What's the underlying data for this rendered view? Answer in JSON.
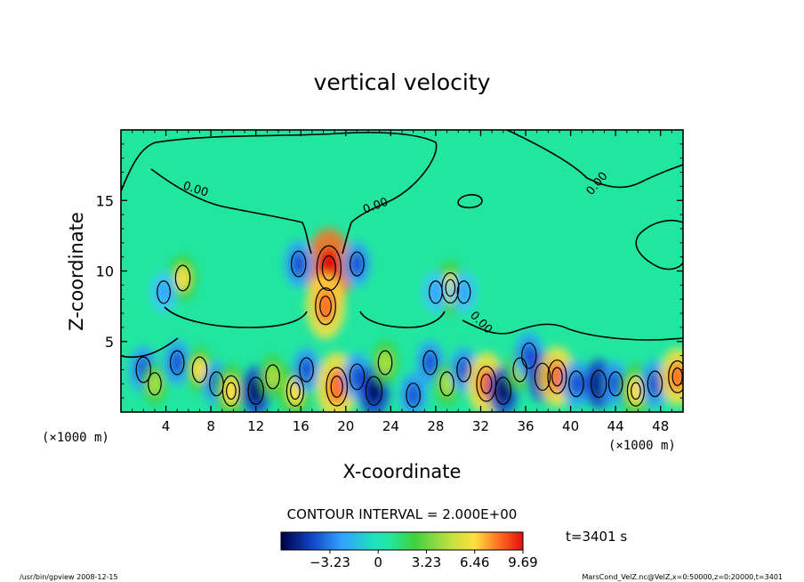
{
  "chart_data": {
    "type": "heatmap",
    "title": "vertical velocity",
    "xlabel": "X-coordinate",
    "ylabel": "Z-coordinate",
    "x_unit_left": "(×1000 m)",
    "x_unit_right": "(×1000 m)",
    "xlim": [
      0,
      50
    ],
    "ylim": [
      0,
      20
    ],
    "xticks": [
      "4",
      "8",
      "12",
      "16",
      "20",
      "24",
      "28",
      "32",
      "36",
      "40",
      "44",
      "48"
    ],
    "yticks": [
      "5",
      "10",
      "15"
    ],
    "contour_interval": "CONTOUR INTERVAL = 2.000E+00",
    "contour_labels": [
      "0.00",
      "0.00",
      "0.00",
      "0.00"
    ],
    "colorbar": {
      "ticks": [
        "−3.23",
        "0",
        "3.23",
        "6.46",
        "9.69"
      ],
      "min": -6.5,
      "max": 9.69
    },
    "time_label": "t=3401 s",
    "cells": [
      {
        "x": 18.5,
        "z": 10.2,
        "w": 9.5
      },
      {
        "x": 18.2,
        "z": 7.5,
        "w": 7.0
      },
      {
        "x": 15.8,
        "z": 10.5,
        "w": -3.5
      },
      {
        "x": 21.0,
        "z": 10.5,
        "w": -3.0
      },
      {
        "x": 5.5,
        "z": 9.5,
        "w": 3.5
      },
      {
        "x": 3.8,
        "z": 8.5,
        "w": -2.5
      },
      {
        "x": 29.3,
        "z": 8.8,
        "w": 5.0
      },
      {
        "x": 28.0,
        "z": 8.5,
        "w": -2.5
      },
      {
        "x": 30.5,
        "z": 8.5,
        "w": -2.5
      },
      {
        "x": 2.0,
        "z": 3.0,
        "w": -3.5
      },
      {
        "x": 3.0,
        "z": 2.0,
        "w": 2.5
      },
      {
        "x": 5.0,
        "z": 3.5,
        "w": -3.0
      },
      {
        "x": 7.0,
        "z": 3.0,
        "w": 3.5
      },
      {
        "x": 8.5,
        "z": 2.0,
        "w": -3.0
      },
      {
        "x": 9.8,
        "z": 1.5,
        "w": 5.0
      },
      {
        "x": 12.0,
        "z": 1.5,
        "w": -4.0
      },
      {
        "x": 13.5,
        "z": 2.5,
        "w": 3.0
      },
      {
        "x": 15.5,
        "z": 1.5,
        "w": 5.0
      },
      {
        "x": 16.5,
        "z": 3.0,
        "w": -3.0
      },
      {
        "x": 19.2,
        "z": 1.8,
        "w": 7.5
      },
      {
        "x": 21.0,
        "z": 2.5,
        "w": -3.5
      },
      {
        "x": 22.5,
        "z": 1.5,
        "w": -4.5
      },
      {
        "x": 23.5,
        "z": 3.5,
        "w": 3.0
      },
      {
        "x": 26.0,
        "z": 1.2,
        "w": -3.0
      },
      {
        "x": 27.5,
        "z": 3.5,
        "w": -3.0
      },
      {
        "x": 29.0,
        "z": 2.0,
        "w": 3.0
      },
      {
        "x": 30.5,
        "z": 3.0,
        "w": -3.0
      },
      {
        "x": 32.5,
        "z": 2.0,
        "w": 6.5
      },
      {
        "x": 34.0,
        "z": 1.5,
        "w": -4.0
      },
      {
        "x": 35.5,
        "z": 3.0,
        "w": 3.0
      },
      {
        "x": 36.3,
        "z": 4.0,
        "w": -3.5
      },
      {
        "x": 37.5,
        "z": 2.5,
        "w": -4.0
      },
      {
        "x": 38.8,
        "z": 2.5,
        "w": 6.0
      },
      {
        "x": 40.5,
        "z": 2.0,
        "w": -3.5
      },
      {
        "x": 42.5,
        "z": 2.0,
        "w": -4.0
      },
      {
        "x": 44.0,
        "z": 2.0,
        "w": -3.0
      },
      {
        "x": 45.8,
        "z": 1.5,
        "w": 5.0
      },
      {
        "x": 47.5,
        "z": 2.0,
        "w": -3.5
      },
      {
        "x": 49.5,
        "z": 2.5,
        "w": 5.5
      }
    ]
  },
  "footer_left": "/usr/bin/gpview   2008-12-15",
  "footer_right": "MarsCond_VelZ.nc@VelZ,x=0:50000,z=0:20000,t=3401",
  "colors": {
    "background_field": "#22e6a0",
    "contour": "#000000",
    "frame": "#000000"
  }
}
